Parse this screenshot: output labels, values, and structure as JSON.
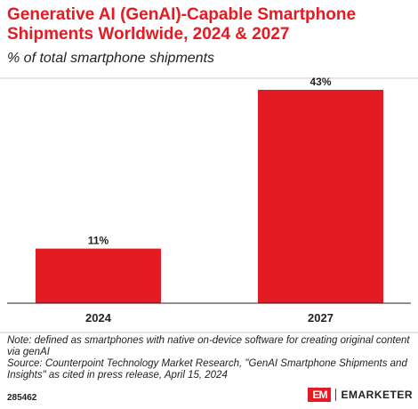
{
  "header": {
    "title": "Generative AI (GenAI)-Capable Smartphone Shipments Worldwide, 2024 & 2027",
    "subtitle": "% of total smartphone shipments"
  },
  "chart_data": {
    "type": "bar",
    "categories": [
      "2024",
      "2027"
    ],
    "values": [
      11,
      43
    ],
    "data_labels": [
      "11%",
      "43%"
    ],
    "ylim": [
      0,
      43
    ],
    "grid": false,
    "legend": "none",
    "bar_color": "#e31b23",
    "title": "Generative AI (GenAI)-Capable Smartphone Shipments Worldwide, 2024 & 2027",
    "subtitle": "% of total smartphone shipments"
  },
  "footer": {
    "note": "Note: defined as smartphones with native on-device software for creating original content via genAI",
    "source": "Source: Counterpoint Technology Market Research, \"GenAI Smartphone Shipments and Insights\" as cited in press release, April 15, 2024",
    "chart_id": "285462",
    "brand_mark": "EM",
    "brand_name": "EMARKETER"
  },
  "colors": {
    "accent": "#e31b23",
    "text": "#222222",
    "rule": "#cccccc"
  }
}
